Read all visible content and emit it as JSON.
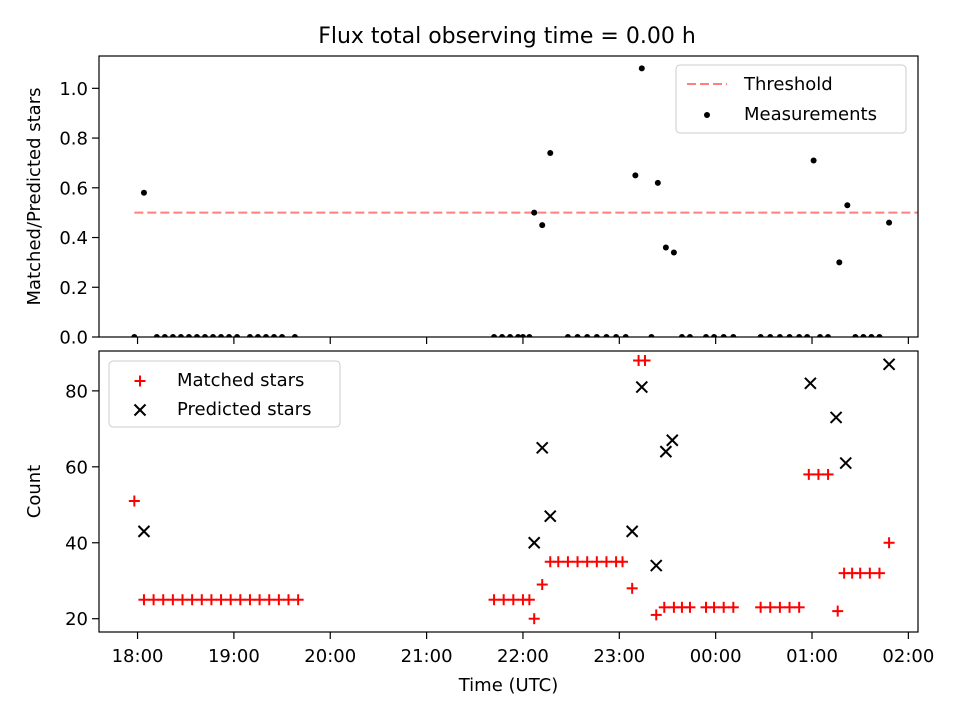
{
  "title": "Flux total observing time = 0.00 h",
  "chart_data": [
    {
      "type": "scatter",
      "ylabel": "Matched/Predicted stars",
      "ylim": [
        0,
        1.13
      ],
      "yticks": [
        0,
        0.2,
        0.4,
        0.6,
        0.8,
        1.0
      ],
      "yticklabels": [
        "0.0",
        "0.2",
        "0.4",
        "0.6",
        "0.8",
        "1.0"
      ],
      "xlim": [
        "17:36",
        "02:06"
      ],
      "legend_position": "upper right",
      "threshold": {
        "name": "Threshold",
        "value": 0.5,
        "x_range": [
          "17:58",
          "02:43"
        ],
        "color": "#ff7f7f"
      },
      "series": [
        {
          "name": "Measurements",
          "color": "#000000",
          "points": [
            [
              "17:58",
              0.0
            ],
            [
              "18:04",
              0.58
            ],
            [
              "18:12",
              0.0
            ],
            [
              "18:17",
              0.0
            ],
            [
              "18:22",
              0.0
            ],
            [
              "18:27",
              0.0
            ],
            [
              "18:32",
              0.0
            ],
            [
              "18:37",
              0.0
            ],
            [
              "18:42",
              0.0
            ],
            [
              "18:47",
              0.0
            ],
            [
              "18:52",
              0.0
            ],
            [
              "18:57",
              0.0
            ],
            [
              "19:02",
              0.0
            ],
            [
              "19:10",
              0.0
            ],
            [
              "19:15",
              0.0
            ],
            [
              "19:20",
              0.0
            ],
            [
              "19:25",
              0.0
            ],
            [
              "19:30",
              0.0
            ],
            [
              "19:38",
              0.0
            ],
            [
              "21:42",
              0.0
            ],
            [
              "21:47",
              0.0
            ],
            [
              "21:52",
              0.0
            ],
            [
              "21:57",
              0.0
            ],
            [
              "22:00",
              0.0
            ],
            [
              "22:04",
              0.0
            ],
            [
              "22:07",
              0.5
            ],
            [
              "22:12",
              0.45
            ],
            [
              "22:17",
              0.74
            ],
            [
              "22:28",
              0.0
            ],
            [
              "22:34",
              0.0
            ],
            [
              "22:40",
              0.0
            ],
            [
              "22:46",
              0.0
            ],
            [
              "22:52",
              0.0
            ],
            [
              "22:58",
              0.0
            ],
            [
              "23:04",
              0.0
            ],
            [
              "23:10",
              0.65
            ],
            [
              "23:14",
              1.08
            ],
            [
              "23:20",
              0.0
            ],
            [
              "23:24",
              0.62
            ],
            [
              "23:29",
              0.36
            ],
            [
              "23:34",
              0.34
            ],
            [
              "23:39",
              0.0
            ],
            [
              "23:44",
              0.0
            ],
            [
              "23:54",
              0.0
            ],
            [
              "23:59",
              0.0
            ],
            [
              "00:05",
              0.0
            ],
            [
              "00:11",
              0.0
            ],
            [
              "00:28",
              0.0
            ],
            [
              "00:34",
              0.0
            ],
            [
              "00:40",
              0.0
            ],
            [
              "00:46",
              0.0
            ],
            [
              "00:52",
              0.0
            ],
            [
              "00:57",
              0.0
            ],
            [
              "01:01",
              0.71
            ],
            [
              "01:05",
              0.0
            ],
            [
              "01:10",
              0.0
            ],
            [
              "01:17",
              0.3
            ],
            [
              "01:22",
              0.53
            ],
            [
              "01:27",
              0.0
            ],
            [
              "01:32",
              0.0
            ],
            [
              "01:37",
              0.0
            ],
            [
              "01:42",
              0.0
            ],
            [
              "01:48",
              0.46
            ]
          ]
        }
      ]
    },
    {
      "type": "scatter",
      "ylabel": "Count",
      "xlabel": "Time (UTC)",
      "ylim": [
        16.5,
        90.5
      ],
      "yticks": [
        20,
        40,
        60,
        80
      ],
      "yticklabels": [
        "20",
        "40",
        "60",
        "80"
      ],
      "xlim": [
        "17:36",
        "02:06"
      ],
      "xticklabels": [
        "18:00",
        "19:00",
        "20:00",
        "21:00",
        "22:00",
        "23:00",
        "00:00",
        "01:00",
        "02:00"
      ],
      "legend_position": "upper left",
      "series": [
        {
          "name": "Matched stars",
          "marker": "+",
          "color": "#ff0000",
          "points": [
            [
              "17:58",
              51
            ],
            [
              "18:04",
              25
            ],
            [
              "18:10",
              25
            ],
            [
              "18:16",
              25
            ],
            [
              "18:22",
              25
            ],
            [
              "18:28",
              25
            ],
            [
              "18:34",
              25
            ],
            [
              "18:40",
              25
            ],
            [
              "18:46",
              25
            ],
            [
              "18:52",
              25
            ],
            [
              "18:58",
              25
            ],
            [
              "19:04",
              25
            ],
            [
              "19:10",
              25
            ],
            [
              "19:16",
              25
            ],
            [
              "19:22",
              25
            ],
            [
              "19:28",
              25
            ],
            [
              "19:34",
              25
            ],
            [
              "19:40",
              25
            ],
            [
              "21:42",
              25
            ],
            [
              "21:48",
              25
            ],
            [
              "21:54",
              25
            ],
            [
              "22:00",
              25
            ],
            [
              "22:04",
              25
            ],
            [
              "22:07",
              20
            ],
            [
              "22:12",
              29
            ],
            [
              "22:17",
              35
            ],
            [
              "22:22",
              35
            ],
            [
              "22:28",
              35
            ],
            [
              "22:34",
              35
            ],
            [
              "22:40",
              35
            ],
            [
              "22:46",
              35
            ],
            [
              "22:52",
              35
            ],
            [
              "22:58",
              35
            ],
            [
              "23:02",
              35
            ],
            [
              "23:08",
              28
            ],
            [
              "23:12",
              88
            ],
            [
              "23:16",
              88
            ],
            [
              "23:23",
              21
            ],
            [
              "23:28",
              23
            ],
            [
              "23:34",
              23
            ],
            [
              "23:39",
              23
            ],
            [
              "23:44",
              23
            ],
            [
              "23:54",
              23
            ],
            [
              "23:59",
              23
            ],
            [
              "00:05",
              23
            ],
            [
              "00:11",
              23
            ],
            [
              "00:28",
              23
            ],
            [
              "00:34",
              23
            ],
            [
              "00:40",
              23
            ],
            [
              "00:46",
              23
            ],
            [
              "00:52",
              23
            ],
            [
              "00:58",
              58
            ],
            [
              "01:04",
              58
            ],
            [
              "01:10",
              58
            ],
            [
              "01:16",
              22
            ],
            [
              "01:20",
              32
            ],
            [
              "01:25",
              32
            ],
            [
              "01:30",
              32
            ],
            [
              "01:36",
              32
            ],
            [
              "01:42",
              32
            ],
            [
              "01:48",
              40
            ]
          ]
        },
        {
          "name": "Predicted stars",
          "marker": "x",
          "color": "#000000",
          "points": [
            [
              "18:04",
              43
            ],
            [
              "22:07",
              40
            ],
            [
              "22:12",
              65
            ],
            [
              "22:17",
              47
            ],
            [
              "23:08",
              43
            ],
            [
              "23:14",
              81
            ],
            [
              "23:23",
              34
            ],
            [
              "23:29",
              64
            ],
            [
              "23:33",
              67
            ],
            [
              "00:59",
              82
            ],
            [
              "01:15",
              73
            ],
            [
              "01:21",
              61
            ],
            [
              "01:48",
              87
            ]
          ]
        }
      ]
    }
  ]
}
